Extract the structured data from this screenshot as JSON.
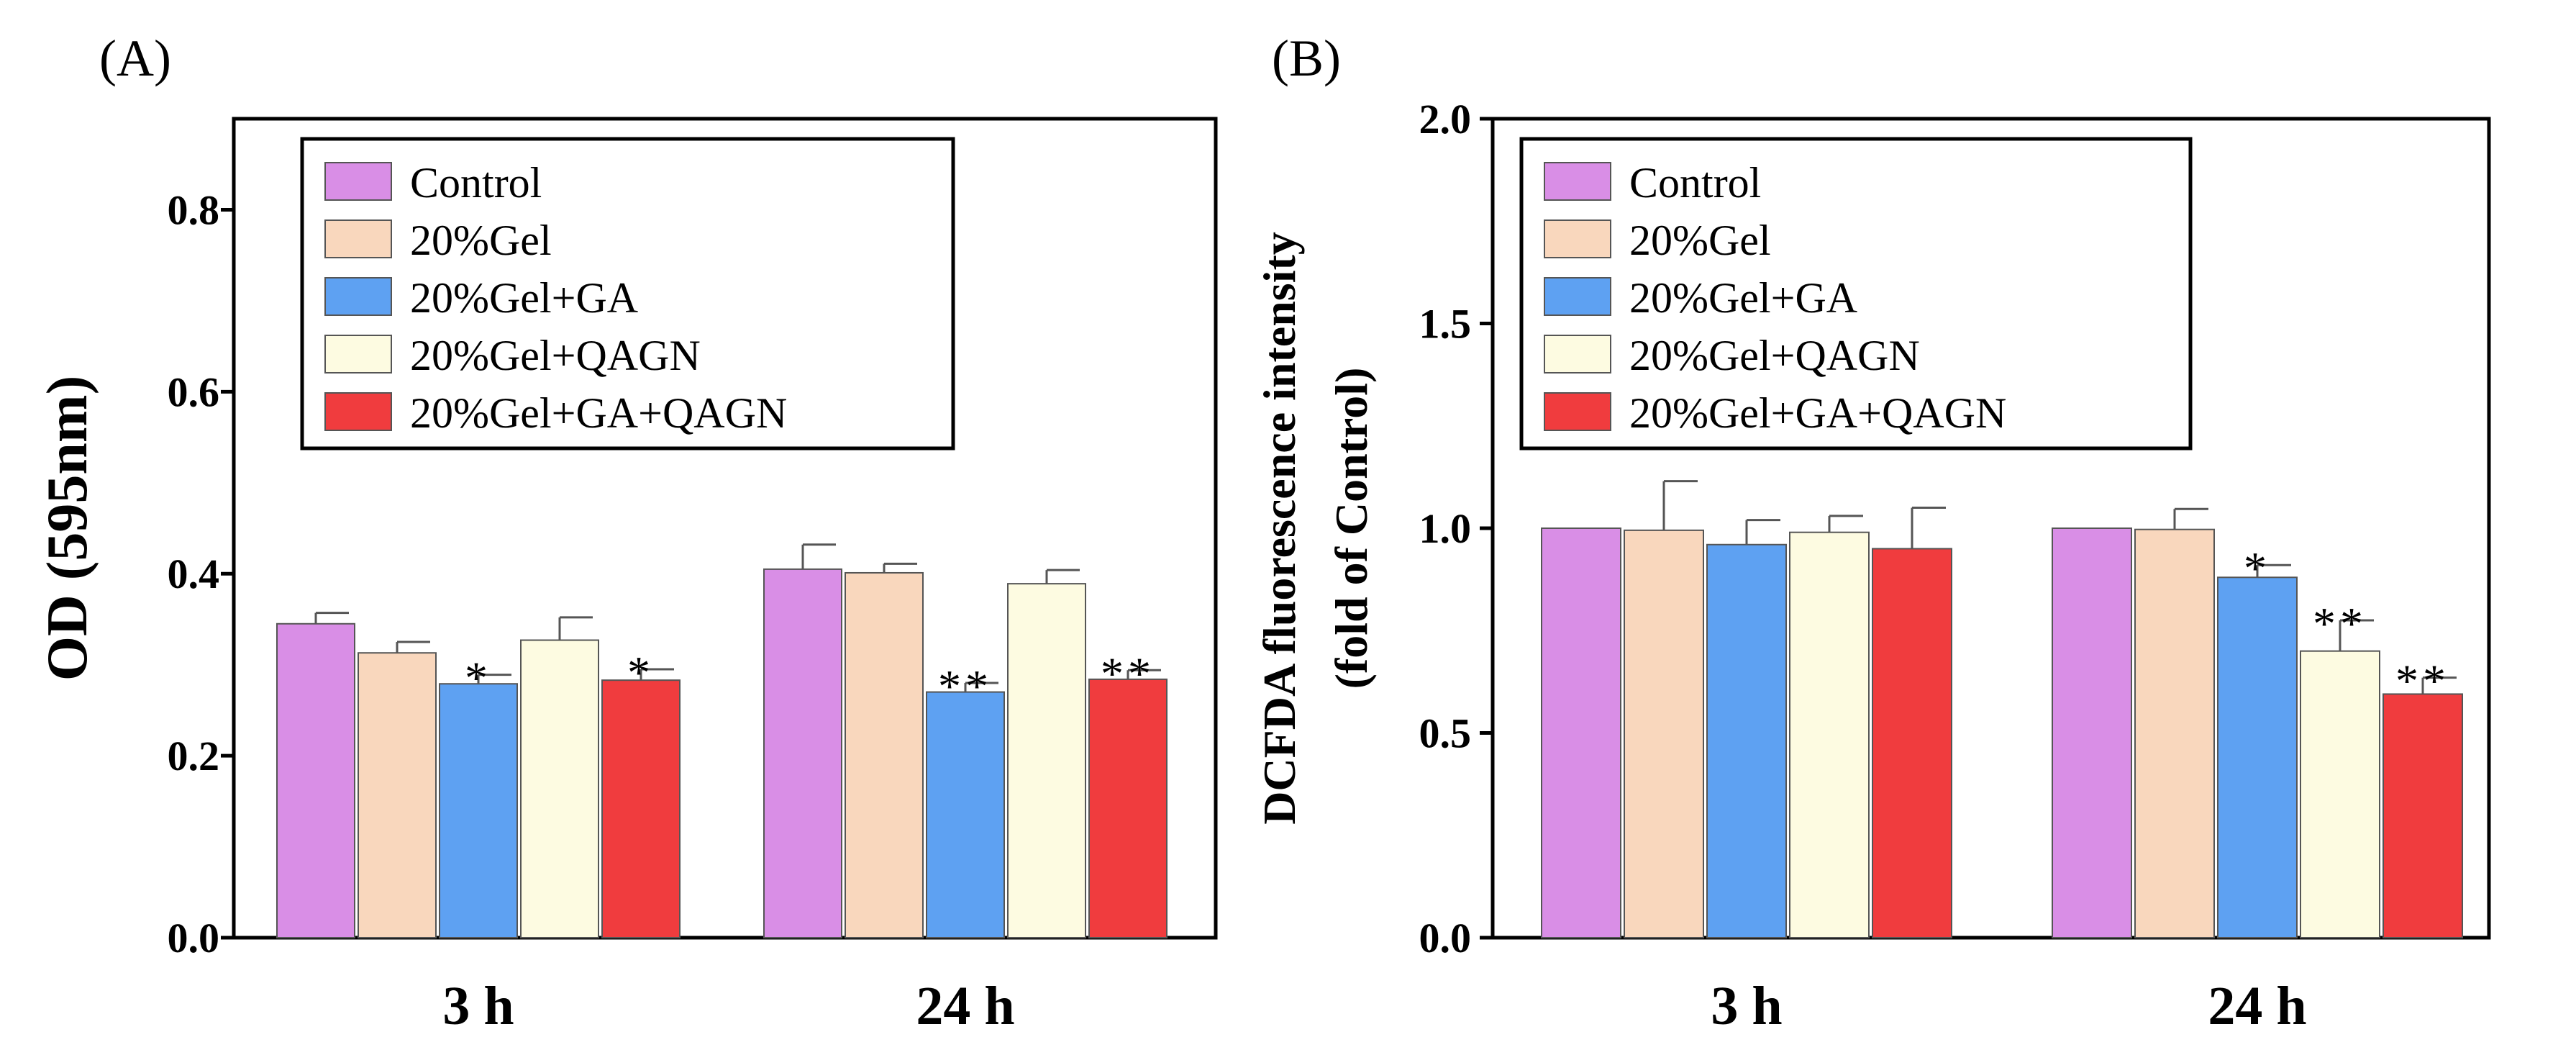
{
  "chart_data": [
    {
      "type": "bar",
      "panel_label": "(A)",
      "categories": [
        "3 h",
        "24 h"
      ],
      "ylabel": "OD (595nm)",
      "xlabel": "",
      "ylim": [
        0,
        0.9
      ],
      "yticks": [
        0.0,
        0.2,
        0.4,
        0.6,
        0.8
      ],
      "ytick_labels": [
        "0.0",
        "0.2",
        "0.4",
        "0.6",
        "0.8"
      ],
      "legend_position": "top-left",
      "series": [
        {
          "name": "Control",
          "color": "#d98ee6",
          "values": [
            0.345,
            0.405
          ],
          "errors": [
            0.012,
            0.027
          ],
          "significance": [
            "",
            ""
          ]
        },
        {
          "name": "20%Gel",
          "color": "#f9d7bd",
          "values": [
            0.313,
            0.401
          ],
          "errors": [
            0.012,
            0.01
          ],
          "significance": [
            "",
            ""
          ]
        },
        {
          "name": "20%Gel+GA",
          "color": "#5ea1f2",
          "values": [
            0.279,
            0.27
          ],
          "errors": [
            0.01,
            0.01
          ],
          "significance": [
            "*",
            "**"
          ]
        },
        {
          "name": "20%Gel+QAGN",
          "color": "#fdfbe1",
          "values": [
            0.327,
            0.389
          ],
          "errors": [
            0.025,
            0.015
          ],
          "significance": [
            "",
            ""
          ]
        },
        {
          "name": "20%Gel+GA+QAGN",
          "color": "#f03c3e",
          "values": [
            0.283,
            0.284
          ],
          "errors": [
            0.012,
            0.01
          ],
          "significance": [
            "*",
            "**"
          ]
        }
      ]
    },
    {
      "type": "bar",
      "panel_label": "(B)",
      "categories": [
        "3 h",
        "24 h"
      ],
      "ylabel": "DCFDA fluorescence intensity",
      "ylabel2": "(fold of Control)",
      "xlabel": "",
      "ylim": [
        0,
        2.0
      ],
      "yticks": [
        0.0,
        0.5,
        1.0,
        1.5,
        2.0
      ],
      "ytick_labels": [
        "0.0",
        "0.5",
        "1.0",
        "1.5",
        "2.0"
      ],
      "legend_position": "top-left",
      "series": [
        {
          "name": "Control",
          "color": "#d98ee6",
          "values": [
            1.0,
            1.0
          ],
          "errors": [
            0,
            0
          ],
          "significance": [
            "",
            ""
          ]
        },
        {
          "name": "20%Gel",
          "color": "#f9d7bd",
          "values": [
            0.995,
            0.997
          ],
          "errors": [
            0.12,
            0.05
          ],
          "significance": [
            "",
            ""
          ]
        },
        {
          "name": "20%Gel+GA",
          "color": "#5ea1f2",
          "values": [
            0.96,
            0.88
          ],
          "errors": [
            0.06,
            0.03
          ],
          "significance": [
            "",
            "*"
          ]
        },
        {
          "name": "20%Gel+QAGN",
          "color": "#fdfbe1",
          "values": [
            0.99,
            0.7
          ],
          "errors": [
            0.04,
            0.075
          ],
          "significance": [
            "",
            "**"
          ]
        },
        {
          "name": "20%Gel+GA+QAGN",
          "color": "#f03c3e",
          "values": [
            0.95,
            0.595
          ],
          "errors": [
            0.1,
            0.04
          ],
          "significance": [
            "",
            "**"
          ]
        }
      ]
    }
  ]
}
